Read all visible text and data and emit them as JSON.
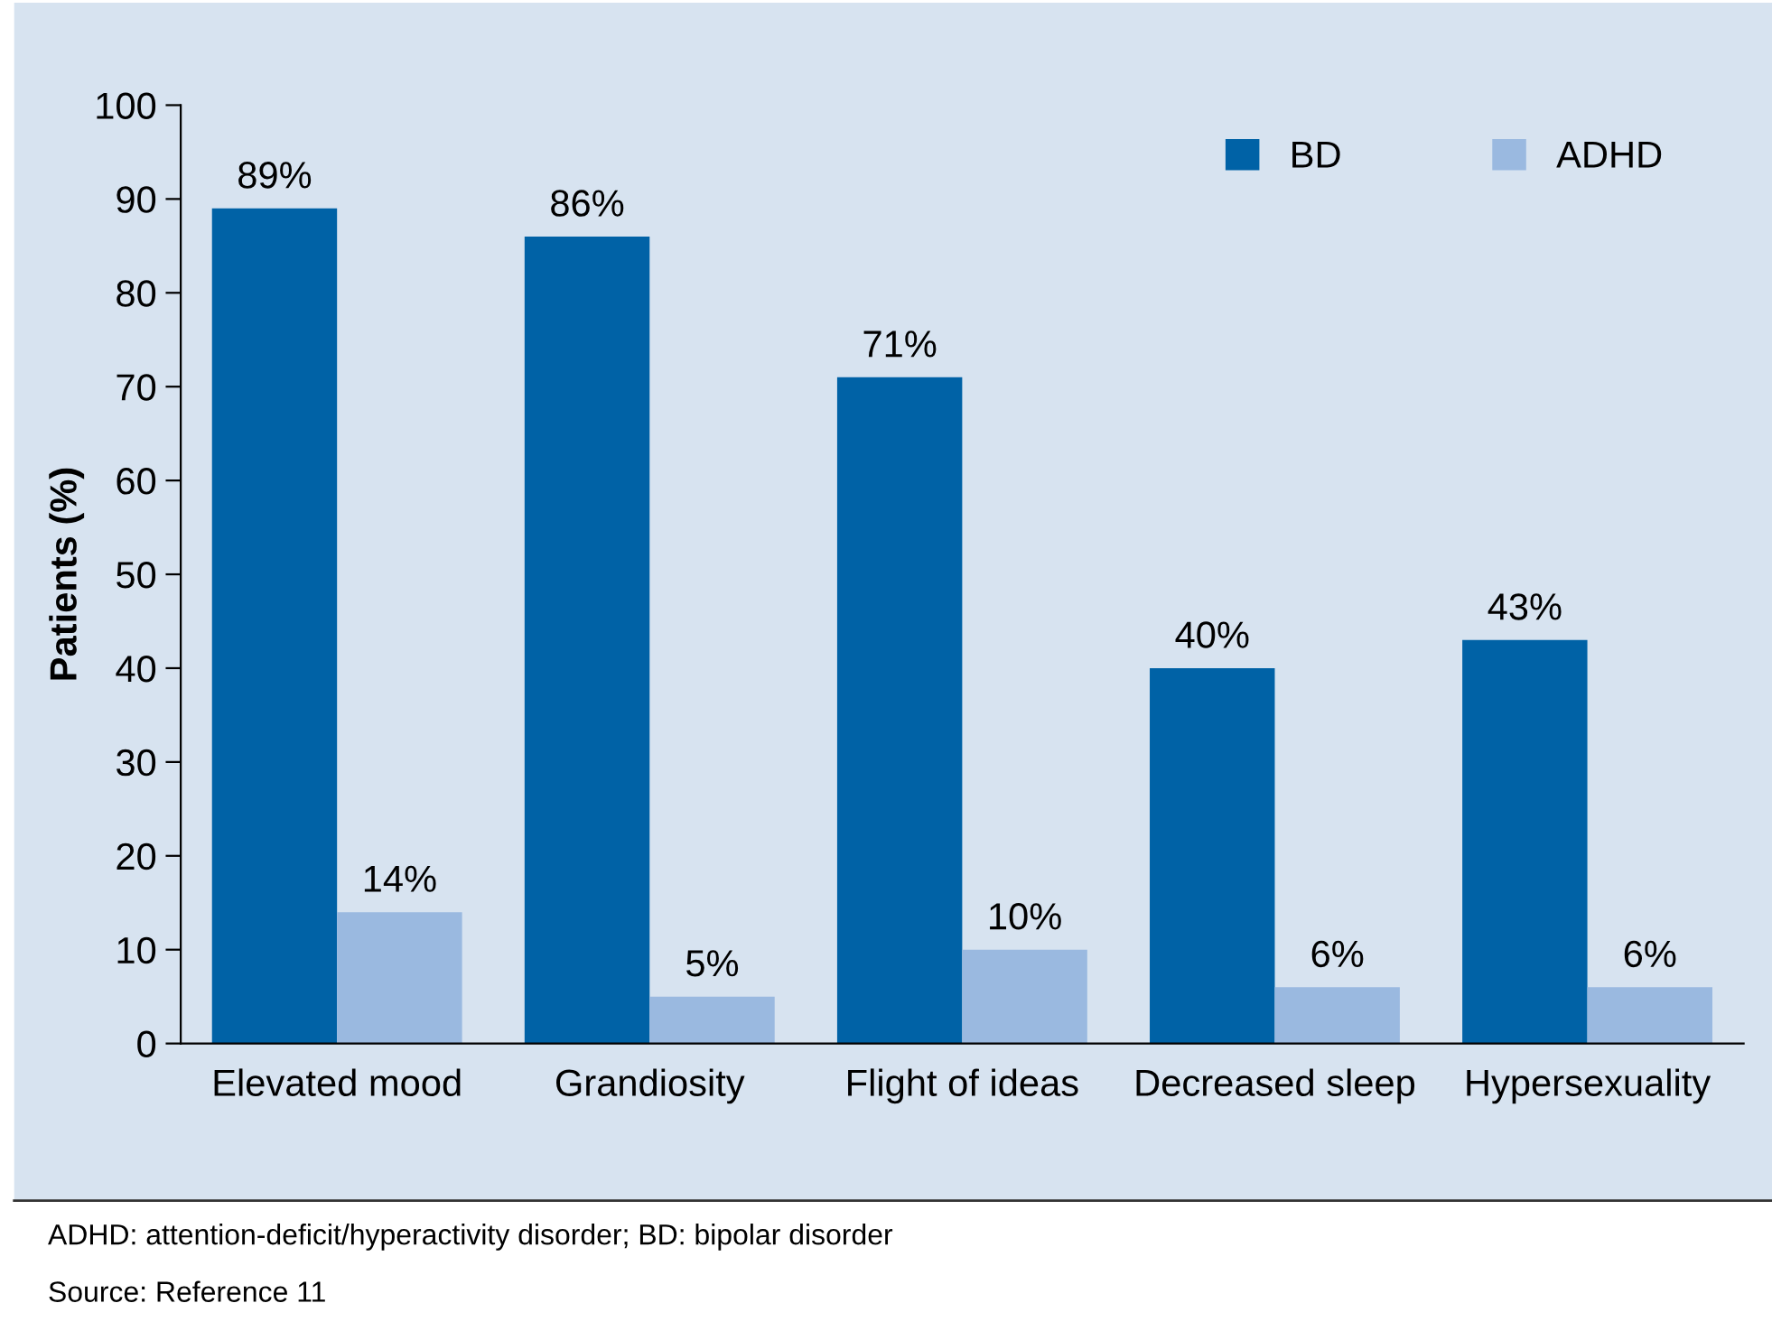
{
  "chart_data": {
    "type": "bar",
    "ylabel": "Patients (%)",
    "categories": [
      "Elevated mood",
      "Grandiosity",
      "Flight of ideas",
      "Decreased sleep",
      "Hypersexuality"
    ],
    "series": [
      {
        "name": "BD",
        "color": "#0062a6",
        "values": [
          89,
          86,
          71,
          40,
          43
        ],
        "value_labels": [
          "89%",
          "86%",
          "71%",
          "40%",
          "43%"
        ]
      },
      {
        "name": "ADHD",
        "color": "#9ab9e0",
        "values": [
          14,
          5,
          10,
          6,
          6
        ],
        "value_labels": [
          "14%",
          "5%",
          "10%",
          "6%",
          "6%"
        ]
      }
    ],
    "ylim": [
      0,
      100
    ],
    "yticks": [
      0,
      10,
      20,
      30,
      40,
      50,
      60,
      70,
      80,
      90,
      100
    ],
    "grid": false,
    "legend": "top right",
    "annotations": [
      "ADHD: attention-deficit/hyperactivity disorder; BD: bipolar disorder",
      "Source: Reference 11"
    ]
  }
}
